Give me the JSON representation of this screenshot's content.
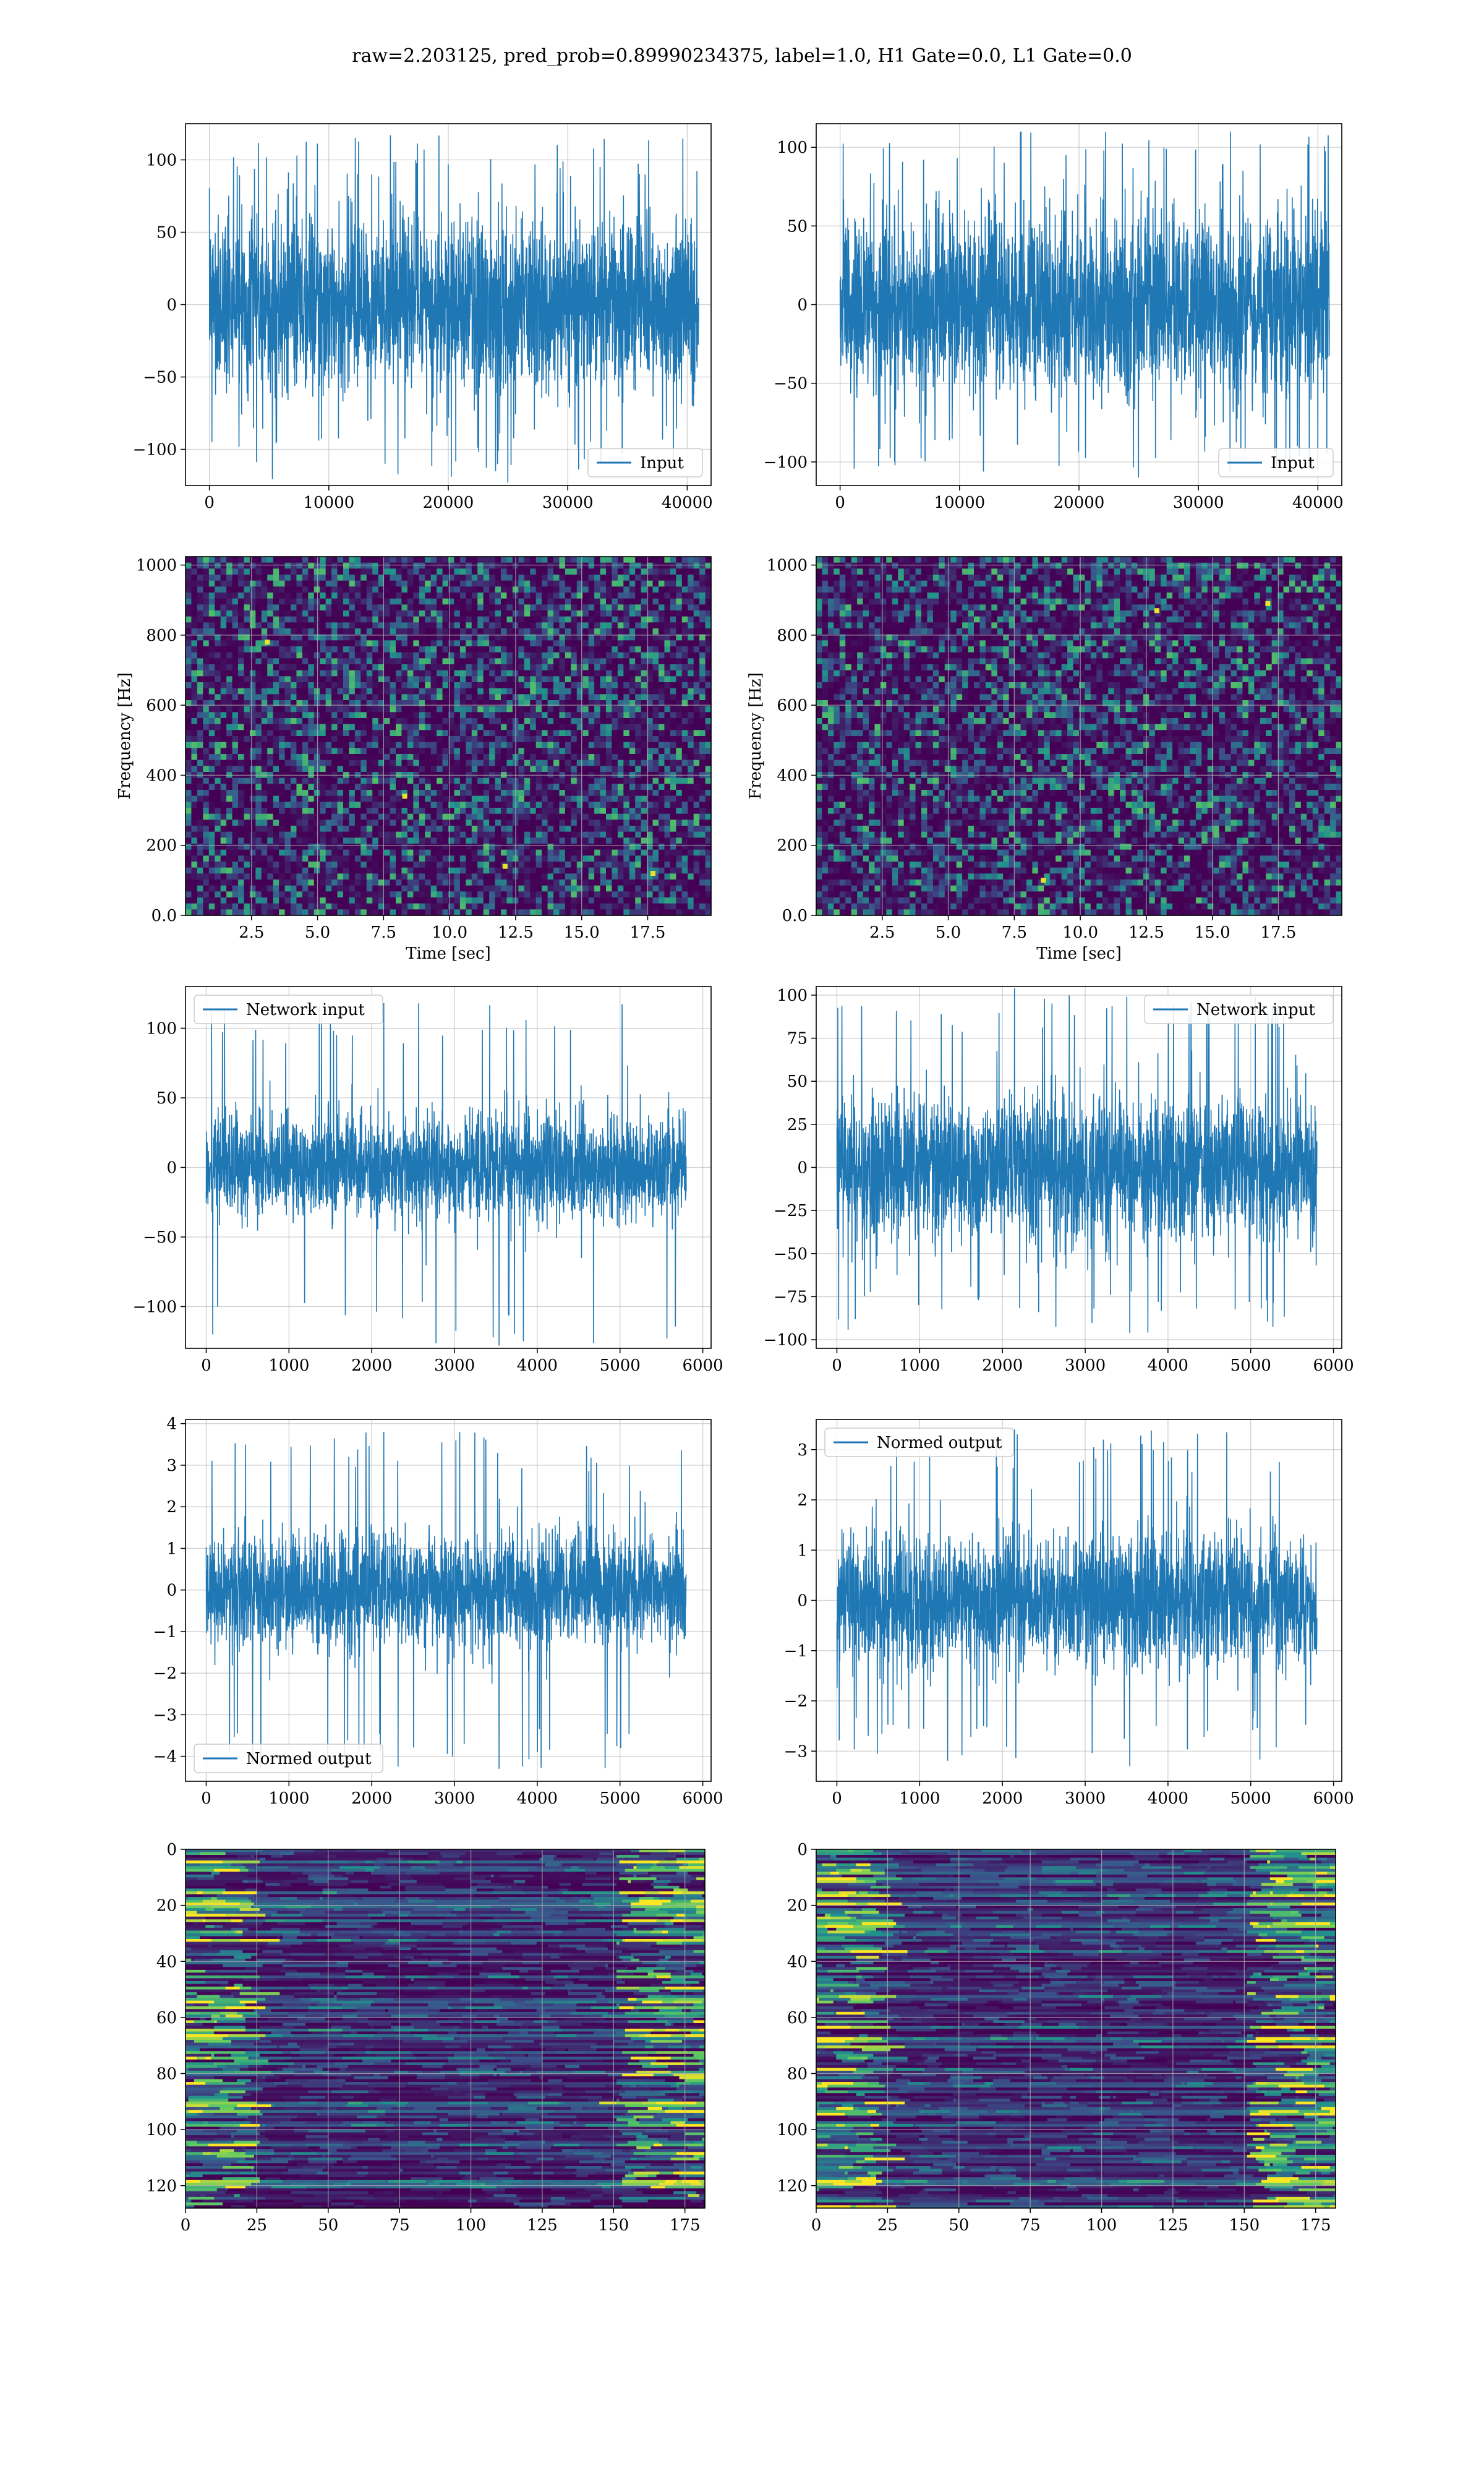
{
  "figure": {
    "suptitle": "raw=2.203125, pred_prob=0.89990234375, label=1.0, H1 Gate=0.0, L1 Gate=0.0",
    "colors": {
      "line": "#1f77b4",
      "grid": "#b0b0b0",
      "heat_low": "#440154",
      "heat_mid": "#21918c",
      "heat_high": "#fde725"
    }
  },
  "chart_data": [
    {
      "id": "input-h1",
      "type": "line",
      "series": [
        {
          "name": "Input"
        }
      ],
      "legend": "lower right",
      "amplitude": {
        "typical": 70,
        "peak_max": 117,
        "peak_min": -123
      },
      "xlim": [
        -2000,
        42000
      ],
      "ylim": [
        -125,
        125
      ],
      "x_ticks": [
        0,
        10000,
        20000,
        30000,
        40000
      ],
      "y_ticks": [
        100,
        50,
        0,
        -50,
        -100
      ],
      "x_data": [
        0,
        40960
      ],
      "grid": true
    },
    {
      "id": "input-l1",
      "type": "line",
      "series": [
        {
          "name": "Input"
        }
      ],
      "legend": "lower right",
      "amplitude": {
        "typical": 70,
        "peak_max": 110,
        "peak_min": -110
      },
      "xlim": [
        -2000,
        42000
      ],
      "ylim": [
        -115,
        115
      ],
      "x_ticks": [
        0,
        10000,
        20000,
        30000,
        40000
      ],
      "y_ticks": [
        100,
        50,
        0,
        -50,
        -100
      ],
      "x_data": [
        0,
        40960
      ],
      "grid": true
    },
    {
      "id": "spec-h1",
      "type": "heatmap",
      "xlabel": "Time [sec]",
      "ylabel": "Frequency [Hz]",
      "xlim": [
        0.0,
        19.9
      ],
      "ylim": [
        0,
        1024
      ],
      "x_ticks": [
        2.5,
        5.0,
        7.5,
        10.0,
        12.5,
        15.0,
        17.5
      ],
      "y_ticks": [
        0,
        200,
        400,
        600,
        800,
        1000
      ],
      "grid": true,
      "hot_spots": [
        [
          8.3,
          340
        ],
        [
          12.1,
          140
        ],
        [
          17.7,
          120
        ],
        [
          3.1,
          780
        ]
      ]
    },
    {
      "id": "spec-l1",
      "type": "heatmap",
      "xlabel": "Time [sec]",
      "ylabel": "Frequency [Hz]",
      "xlim": [
        0.0,
        19.9
      ],
      "ylim": [
        0,
        1024
      ],
      "x_ticks": [
        2.5,
        5.0,
        7.5,
        10.0,
        12.5,
        15.0,
        17.5
      ],
      "y_ticks": [
        0,
        200,
        400,
        600,
        800,
        1000
      ],
      "grid": true,
      "hot_spots": [
        [
          12.9,
          870
        ],
        [
          17.1,
          890
        ],
        [
          8.6,
          100
        ]
      ]
    },
    {
      "id": "network-h1",
      "type": "line",
      "series": [
        {
          "name": "Network input"
        }
      ],
      "legend": "upper left",
      "amplitude": {
        "typical": 45,
        "peak_max": 118,
        "peak_min": -128
      },
      "xlim": [
        -250,
        6100
      ],
      "ylim": [
        -130,
        130
      ],
      "x_ticks": [
        0,
        1000,
        2000,
        3000,
        4000,
        5000,
        6000
      ],
      "y_ticks": [
        100,
        50,
        0,
        -50,
        -100
      ],
      "x_data": [
        0,
        5800
      ],
      "grid": true
    },
    {
      "id": "network-l1",
      "type": "line",
      "series": [
        {
          "name": "Network input"
        }
      ],
      "legend": "upper right",
      "amplitude": {
        "typical": 50,
        "peak_max": 104,
        "peak_min": -96
      },
      "xlim": [
        -250,
        6100
      ],
      "ylim": [
        -105,
        105
      ],
      "x_ticks": [
        0,
        1000,
        2000,
        3000,
        4000,
        5000,
        6000
      ],
      "y_ticks": [
        100,
        75,
        50,
        25,
        0,
        -25,
        -50,
        -75,
        -100
      ],
      "x_data": [
        0,
        5800
      ],
      "grid": true
    },
    {
      "id": "normed-h1",
      "type": "line",
      "series": [
        {
          "name": "Normed output"
        }
      ],
      "legend": "lower left",
      "amplitude": {
        "typical": 1.6,
        "peak_max": 3.8,
        "peak_min": -4.3
      },
      "xlim": [
        -250,
        6100
      ],
      "ylim": [
        -4.6,
        4.1
      ],
      "x_ticks": [
        0,
        1000,
        2000,
        3000,
        4000,
        5000,
        6000
      ],
      "y_ticks": [
        4,
        3,
        2,
        1,
        0,
        -1,
        -2,
        -3,
        -4
      ],
      "x_data": [
        0,
        5800
      ],
      "grid": true
    },
    {
      "id": "normed-l1",
      "type": "line",
      "series": [
        {
          "name": "Normed output"
        }
      ],
      "legend": "upper left",
      "amplitude": {
        "typical": 1.6,
        "peak_max": 3.4,
        "peak_min": -3.3
      },
      "xlim": [
        -250,
        6100
      ],
      "ylim": [
        -3.6,
        3.6
      ],
      "x_ticks": [
        0,
        1000,
        2000,
        3000,
        4000,
        5000,
        6000
      ],
      "y_ticks": [
        3,
        2,
        1,
        0,
        -1,
        -2,
        -3
      ],
      "x_data": [
        0,
        5800
      ],
      "grid": true
    },
    {
      "id": "features-h1",
      "type": "heatmap",
      "xlim": [
        0,
        182
      ],
      "ylim": [
        0,
        128
      ],
      "y_inverted": true,
      "x_ticks": [
        0,
        25,
        50,
        75,
        100,
        125,
        150,
        175
      ],
      "y_ticks": [
        0,
        20,
        40,
        60,
        80,
        100,
        120
      ],
      "grid": true
    },
    {
      "id": "features-l1",
      "type": "heatmap",
      "xlim": [
        0,
        182
      ],
      "ylim": [
        0,
        128
      ],
      "y_inverted": true,
      "x_ticks": [
        0,
        25,
        50,
        75,
        100,
        125,
        150,
        175
      ],
      "y_ticks": [
        0,
        20,
        40,
        60,
        80,
        100,
        120
      ],
      "grid": true
    }
  ]
}
